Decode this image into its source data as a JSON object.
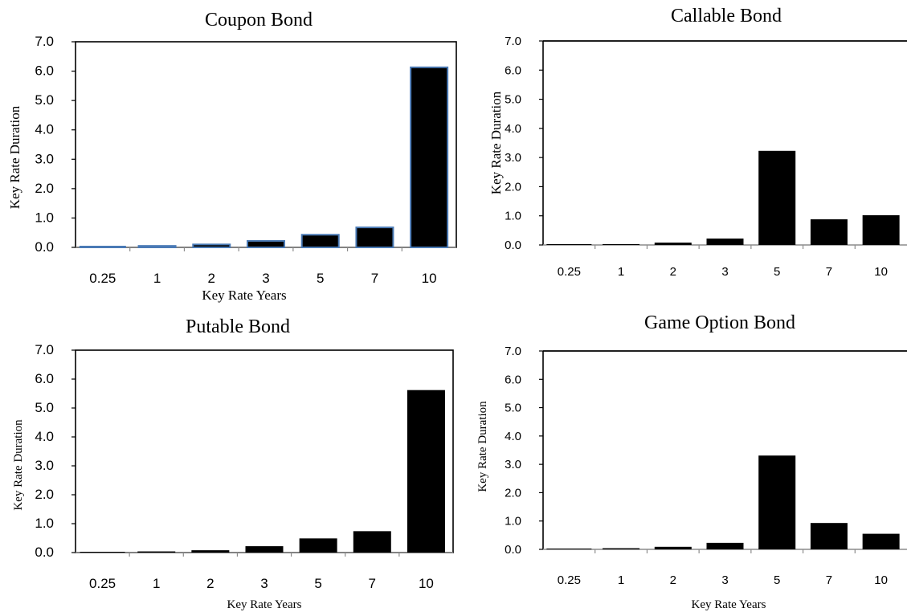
{
  "chart_data": [
    {
      "type": "bar",
      "title": "Coupon Bond",
      "xlabel": "Key Rate Years",
      "ylabel": "Key Rate Duration",
      "categories": [
        "0.25",
        "1",
        "2",
        "3",
        "5",
        "7",
        "10"
      ],
      "values": [
        0.01,
        0.05,
        0.1,
        0.22,
        0.43,
        0.68,
        6.13
      ],
      "ylim": [
        0,
        7
      ],
      "yticks": [
        "0.0",
        "1.0",
        "2.0",
        "3.0",
        "4.0",
        "5.0",
        "6.0",
        "7.0"
      ],
      "grid": false,
      "bar_color": "#000000",
      "bar_edge_color": "#4a7ab5"
    },
    {
      "type": "bar",
      "title": "Callable Bond",
      "xlabel": "",
      "ylabel": "Key Rate Duration",
      "categories": [
        "0.25",
        "1",
        "2",
        "3",
        "5",
        "7",
        "10"
      ],
      "values": [
        0.0,
        0.03,
        0.08,
        0.22,
        3.23,
        0.88,
        1.02
      ],
      "ylim": [
        0,
        7
      ],
      "yticks": [
        "0.0",
        "1.0",
        "2.0",
        "3.0",
        "4.0",
        "5.0",
        "6.0",
        "7.0"
      ],
      "grid": false,
      "bar_color": "#000000"
    },
    {
      "type": "bar",
      "title": "Putable Bond",
      "xlabel": "Key Rate Years",
      "ylabel": "Key Rate Duration",
      "categories": [
        "0.25",
        "1",
        "2",
        "3",
        "5",
        "7",
        "10"
      ],
      "values": [
        0.0,
        0.04,
        0.08,
        0.22,
        0.49,
        0.74,
        5.62
      ],
      "ylim": [
        0,
        7
      ],
      "yticks": [
        "0.0",
        "1.0",
        "2.0",
        "3.0",
        "4.0",
        "5.0",
        "6.0",
        "7.0"
      ],
      "grid": false,
      "bar_color": "#000000"
    },
    {
      "type": "bar",
      "title": "Game Option Bond",
      "xlabel": "Key Rate Years",
      "ylabel": "Key Rate Duration",
      "categories": [
        "0.25",
        "1",
        "2",
        "3",
        "5",
        "7",
        "10"
      ],
      "values": [
        0.0,
        0.04,
        0.09,
        0.23,
        3.31,
        0.93,
        0.55
      ],
      "ylim": [
        0,
        7
      ],
      "yticks": [
        "0.0",
        "1.0",
        "2.0",
        "3.0",
        "4.0",
        "5.0",
        "6.0",
        "7.0"
      ],
      "grid": false,
      "bar_color": "#000000"
    }
  ]
}
